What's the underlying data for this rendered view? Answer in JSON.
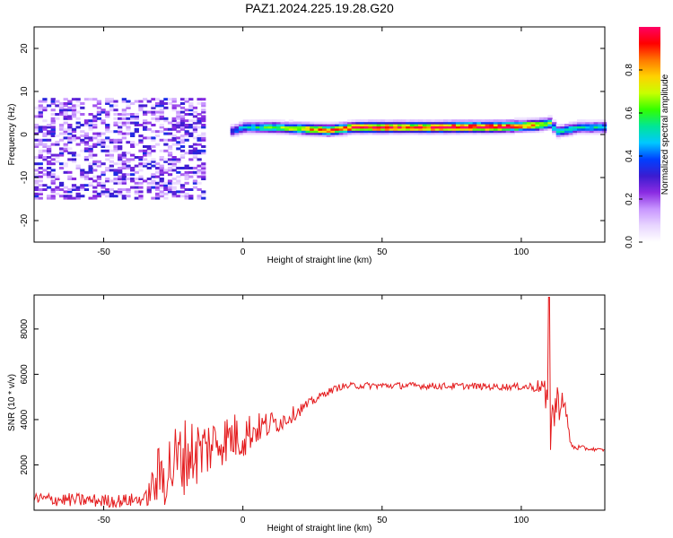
{
  "title": "PAZ1.2024.225.19.28.G20",
  "chart_data": [
    {
      "type": "heatmap",
      "title": "PAZ1.2024.225.19.28.G20",
      "xlabel": "Height of straight line (km)",
      "ylabel": "Frequency (Hz)",
      "xlim": [
        -75,
        130
      ],
      "ylim": [
        -25,
        25
      ],
      "x_ticks": [
        -50,
        0,
        50,
        100
      ],
      "y_ticks": [
        -20,
        -10,
        0,
        10,
        20
      ],
      "colorbar": {
        "label": "Normalized spectral amplitude",
        "range": [
          0,
          1
        ],
        "ticks": [
          0.0,
          0.2,
          0.4,
          0.6,
          0.8
        ],
        "colors": [
          "#ffffff",
          "#e8d6ff",
          "#c896ff",
          "#8a2be2",
          "#3a1cd0",
          "#0040ff",
          "#00c8ff",
          "#00e696",
          "#32ff00",
          "#c8ff00",
          "#ffd200",
          "#ff7800",
          "#ff0000",
          "#ff0064"
        ]
      },
      "ridge": {
        "x": [
          -5,
          0,
          10,
          20,
          30,
          40,
          50,
          60,
          70,
          80,
          90,
          100,
          105,
          110,
          112,
          115,
          120,
          130
        ],
        "freq": [
          0.5,
          1.5,
          1.5,
          1.2,
          0.8,
          1.5,
          1.5,
          1.5,
          1.5,
          1.6,
          1.6,
          1.8,
          2.0,
          2.5,
          0.5,
          0.8,
          1.5,
          1.5
        ],
        "amplitude": [
          0.35,
          0.5,
          0.6,
          0.75,
          0.85,
          0.9,
          0.95,
          0.9,
          0.95,
          1.0,
          0.95,
          0.85,
          0.8,
          0.6,
          0.5,
          0.55,
          0.5,
          0.5
        ]
      },
      "noise_region": {
        "x_range": [
          -75,
          -15
        ],
        "freq_range": [
          -15,
          8
        ]
      }
    },
    {
      "type": "line",
      "xlabel": "Height of straight line (km)",
      "ylabel": "SNR (10 * v/v)",
      "xlim": [
        -75,
        130
      ],
      "ylim": [
        0,
        9500
      ],
      "x_ticks": [
        -50,
        0,
        50,
        100
      ],
      "y_ticks": [
        2000,
        4000,
        6000,
        8000
      ],
      "color": "#e41a1c",
      "envelope": {
        "x": [
          -75,
          -60,
          -45,
          -35,
          -30,
          -25,
          -20,
          -15,
          -10,
          -5,
          0,
          5,
          10,
          15,
          20,
          25,
          30,
          35,
          40,
          50,
          60,
          70,
          80,
          90,
          100,
          105,
          108,
          110,
          112,
          115,
          118,
          125,
          130
        ],
        "mean": [
          500,
          450,
          400,
          500,
          1500,
          2000,
          2500,
          2600,
          3000,
          3200,
          3300,
          3600,
          3800,
          4000,
          4400,
          4800,
          5200,
          5450,
          5500,
          5500,
          5500,
          5480,
          5480,
          5450,
          5450,
          5450,
          5500,
          3500,
          4500,
          5000,
          2800,
          2700,
          2650
        ],
        "amp": [
          300,
          300,
          300,
          300,
          1500,
          1800,
          1700,
          1500,
          1200,
          1100,
          1100,
          700,
          600,
          400,
          300,
          200,
          150,
          150,
          150,
          150,
          150,
          150,
          150,
          150,
          150,
          250,
          400,
          1500,
          1200,
          500,
          150,
          80,
          60
        ]
      },
      "spike": {
        "x": 110,
        "y": 9400
      }
    }
  ]
}
